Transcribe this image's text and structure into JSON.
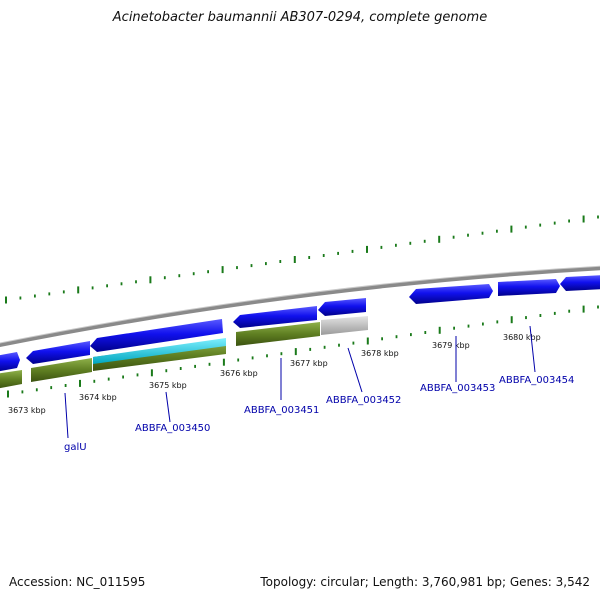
{
  "title": "Acinetobacter baumannii AB307-0294, complete genome",
  "accession": "Accession: NC_011595",
  "summary": "Topology: circular; Length: 3,760,981 bp; Genes: 3,542",
  "colors": {
    "cds_forward": "#0000cc",
    "cds_reverse_track": "#5a7d1e",
    "rna_gene": "#00bcd4",
    "other_gene": "#b0b0b0",
    "backbone": "#888888",
    "tick": "#1a7a1a",
    "label": "#0000aa"
  },
  "scale_labels": [
    "3673 kbp",
    "3674 kbp",
    "3675 kbp",
    "3676 kbp",
    "3677 kbp",
    "3678 kbp",
    "3679 kbp",
    "3680 kbp"
  ],
  "gene_labels": [
    "galU",
    "ABBFA_003450",
    "ABBFA_003451",
    "ABBFA_003452",
    "ABBFA_003453",
    "ABBFA_003454"
  ]
}
